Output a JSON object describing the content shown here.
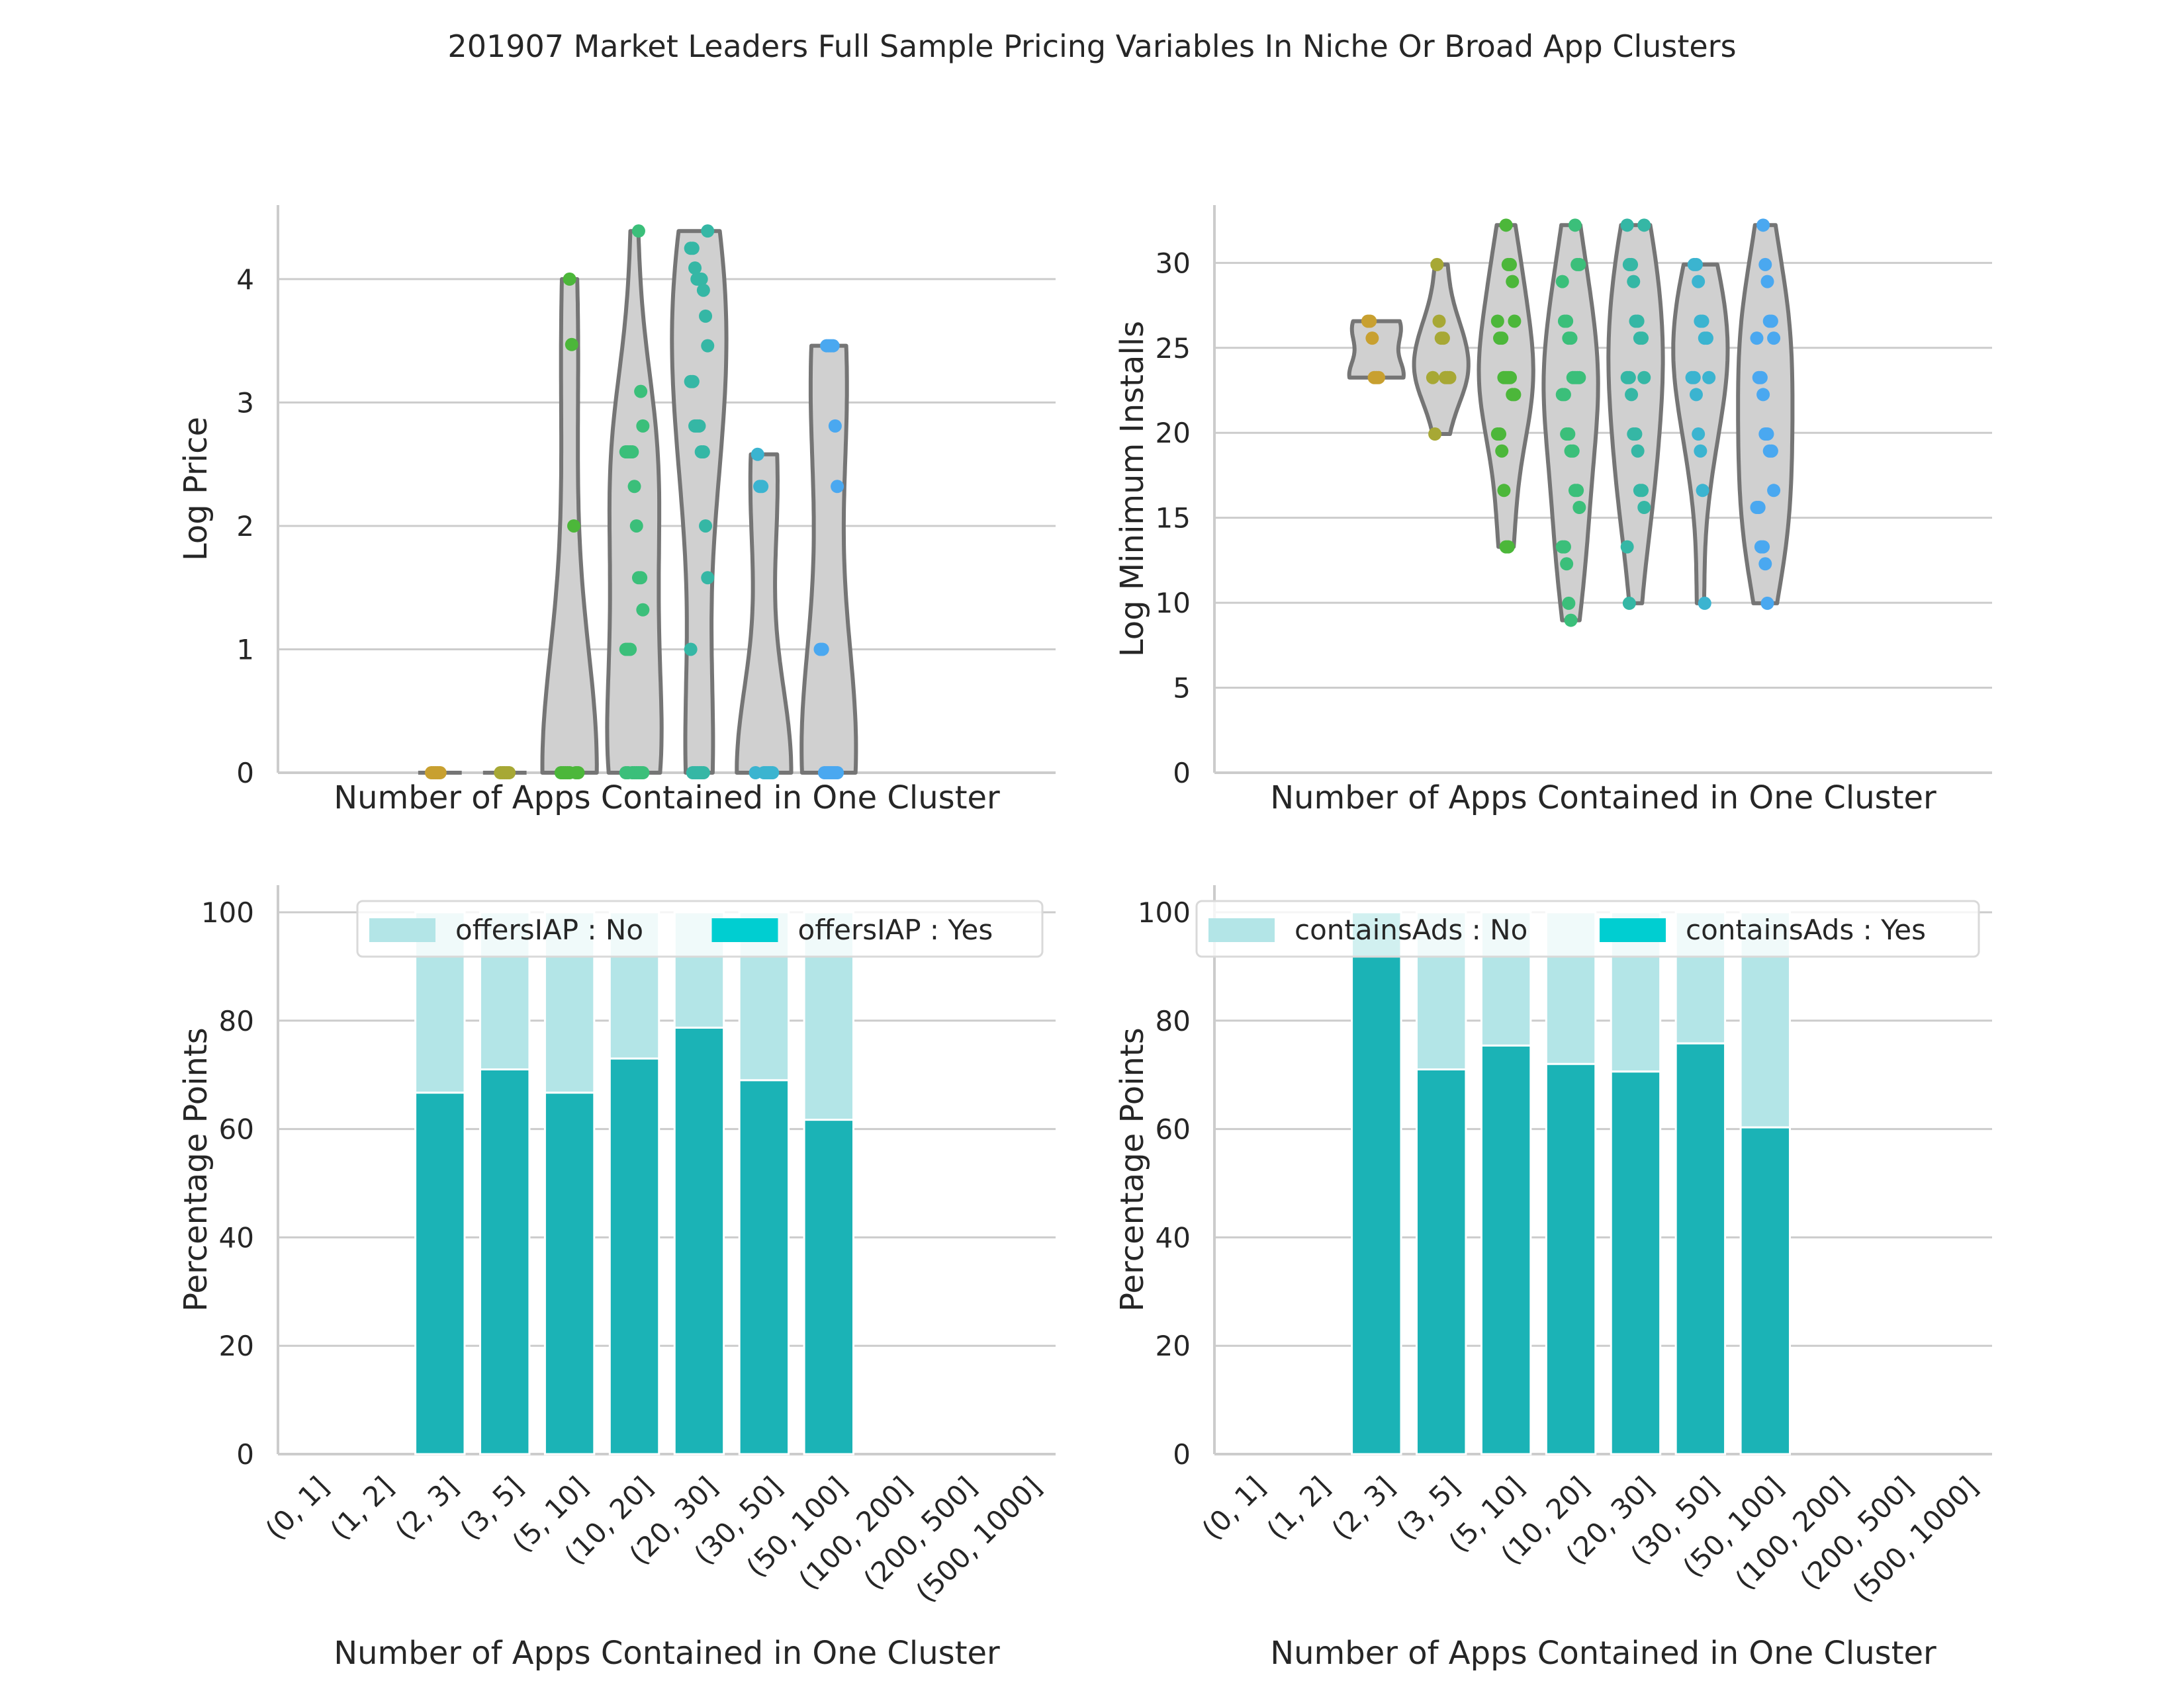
{
  "figure": {
    "title": "201907 Market Leaders Full Sample Pricing Variables In Niche Or Broad App Clusters"
  },
  "chart_data": [
    {
      "type": "violin",
      "id": "price",
      "xlabel": "Number of Apps Contained in One Cluster",
      "ylabel": "Log Price",
      "ylim": [
        0,
        4.6
      ],
      "yticks": [
        0,
        1,
        2,
        3,
        4
      ],
      "grid": true,
      "categories": [
        "(0, 1]",
        "(1, 2]",
        "(2, 3]",
        "(3, 5]",
        "(5, 10]",
        "(10, 20]",
        "(20, 30]",
        "(30, 50]",
        "(50, 100]",
        "(100, 200]",
        "(200, 500]",
        "(500, 1000]"
      ],
      "groups": [
        {
          "category": "(2, 3]",
          "color": "#c8a030",
          "range": [
            0,
            0
          ],
          "points": [
            0,
            0,
            0,
            0,
            0
          ]
        },
        {
          "category": "(3, 5]",
          "color": "#a7a835",
          "range": [
            0,
            0
          ],
          "points": [
            0,
            0,
            0,
            0,
            0
          ]
        },
        {
          "category": "(5, 10]",
          "color": "#4cb73a",
          "range": [
            0,
            4.0
          ],
          "points": [
            4.0,
            3.47,
            2.0,
            0,
            0,
            0,
            0,
            0,
            0,
            0
          ]
        },
        {
          "category": "(10, 20]",
          "color": "#3bbf7a",
          "range": [
            0,
            4.39
          ],
          "points": [
            4.39,
            3.09,
            2.81,
            2.6,
            2.6,
            2.6,
            2.6,
            2.32,
            2.0,
            1.58,
            1.58,
            1.32,
            1.0,
            1.0,
            1.0,
            0,
            0,
            0,
            0,
            0,
            0,
            0,
            0
          ]
        },
        {
          "category": "(20, 30]",
          "color": "#35b7a5",
          "range": [
            0,
            4.39
          ],
          "points": [
            4.39,
            4.25,
            4.25,
            4.09,
            4.0,
            4.0,
            4.0,
            3.91,
            3.7,
            3.46,
            3.17,
            3.17,
            2.81,
            2.81,
            2.81,
            2.6,
            2.6,
            2.0,
            1.58,
            1.0,
            0,
            0,
            0,
            0,
            0,
            0
          ]
        },
        {
          "category": "(30, 50]",
          "color": "#3bb4d0",
          "range": [
            0,
            2.58
          ],
          "points": [
            2.58,
            2.32,
            2.32,
            0,
            0,
            0,
            0,
            0,
            0
          ]
        },
        {
          "category": "(50, 100]",
          "color": "#4aa8f0",
          "range": [
            0,
            3.46
          ],
          "points": [
            3.46,
            3.46,
            3.46,
            3.46,
            2.81,
            2.32,
            1.0,
            1.0,
            0,
            0,
            0,
            0,
            0,
            0,
            0
          ]
        }
      ]
    },
    {
      "type": "violin",
      "id": "installs",
      "xlabel": "Number of Apps Contained in One Cluster",
      "ylabel": "Log Minimum Installs",
      "ylim": [
        0,
        33.4
      ],
      "yticks": [
        0,
        5,
        10,
        15,
        20,
        25,
        30
      ],
      "grid": true,
      "categories": [
        "(0, 1]",
        "(1, 2]",
        "(2, 3]",
        "(3, 5]",
        "(5, 10]",
        "(10, 20]",
        "(20, 30]",
        "(30, 50]",
        "(50, 100]",
        "(100, 200]",
        "(200, 500]",
        "(500, 1000]"
      ],
      "groups": [
        {
          "category": "(2, 3]",
          "color": "#c8a030",
          "range": [
            23.25,
            26.57
          ],
          "points": [
            26.57,
            26.57,
            25.57,
            23.25,
            23.25,
            23.25
          ]
        },
        {
          "category": "(3, 5]",
          "color": "#a7a835",
          "range": [
            19.93,
            29.9
          ],
          "points": [
            29.9,
            26.57,
            25.57,
            25.57,
            23.25,
            23.25,
            23.25,
            23.25,
            19.93
          ]
        },
        {
          "category": "(5, 10]",
          "color": "#4cb73a",
          "range": [
            13.29,
            32.22
          ],
          "points": [
            32.22,
            29.9,
            29.9,
            28.9,
            26.57,
            26.57,
            25.57,
            25.57,
            23.25,
            23.25,
            23.25,
            23.25,
            22.25,
            22.25,
            19.93,
            19.93,
            18.93,
            16.61,
            13.29,
            13.29
          ]
        },
        {
          "category": "(10, 20]",
          "color": "#3bbf7a",
          "range": [
            8.97,
            32.22
          ],
          "points": [
            32.22,
            29.9,
            29.9,
            28.9,
            26.57,
            26.57,
            25.57,
            25.57,
            23.25,
            23.25,
            23.25,
            23.25,
            22.25,
            22.25,
            19.93,
            19.93,
            18.93,
            18.93,
            16.61,
            16.61,
            15.61,
            13.29,
            13.29,
            12.29,
            9.97,
            8.97
          ]
        },
        {
          "category": "(20, 30]",
          "color": "#35b7a5",
          "range": [
            9.97,
            32.22
          ],
          "points": [
            32.22,
            32.22,
            29.9,
            29.9,
            28.9,
            26.57,
            26.57,
            25.57,
            25.57,
            23.25,
            23.25,
            23.25,
            22.25,
            19.93,
            19.93,
            18.93,
            16.61,
            16.61,
            15.61,
            13.29,
            9.97
          ]
        },
        {
          "category": "(30, 50]",
          "color": "#3bb4d0",
          "range": [
            9.97,
            29.9
          ],
          "points": [
            29.9,
            29.9,
            28.9,
            26.57,
            26.57,
            25.57,
            25.57,
            23.25,
            23.25,
            23.25,
            22.25,
            19.93,
            18.93,
            16.61,
            9.97
          ]
        },
        {
          "category": "(50, 100]",
          "color": "#4aa8f0",
          "range": [
            9.97,
            32.22
          ],
          "points": [
            32.22,
            29.9,
            28.9,
            26.57,
            26.57,
            25.57,
            25.57,
            23.25,
            23.25,
            22.25,
            19.93,
            19.93,
            18.93,
            18.93,
            16.61,
            15.61,
            15.61,
            13.29,
            13.29,
            12.29,
            9.97
          ]
        }
      ]
    },
    {
      "type": "bar",
      "stacked": true,
      "id": "iap",
      "xlabel": "Number of Apps Contained in One Cluster",
      "ylabel": "Percentage Points",
      "ylim": [
        0,
        105
      ],
      "yticks": [
        0,
        20,
        40,
        60,
        80,
        100
      ],
      "grid": true,
      "legend_position": "top-right",
      "categories": [
        "(0, 1]",
        "(1, 2]",
        "(2, 3]",
        "(3, 5]",
        "(5, 10]",
        "(10, 20]",
        "(20, 30]",
        "(30, 50]",
        "(50, 100]",
        "(100, 200]",
        "(200, 500]",
        "(500, 1000]"
      ],
      "series": [
        {
          "name": "offersIAP : No",
          "color": "#b3e5e7",
          "values": [
            0,
            0,
            33.3,
            29,
            33.3,
            27,
            21.3,
            31,
            38.3,
            0,
            0,
            0
          ]
        },
        {
          "name": "offersIAP : Yes",
          "color": "#1bb3b6",
          "legend_color": "#00ced1",
          "values": [
            0,
            0,
            66.7,
            71,
            66.7,
            73,
            78.7,
            69,
            61.7,
            0,
            0,
            0
          ]
        }
      ]
    },
    {
      "type": "bar",
      "stacked": true,
      "id": "ads",
      "xlabel": "Number of Apps Contained in One Cluster",
      "ylabel": "Percentage Points",
      "ylim": [
        0,
        105
      ],
      "yticks": [
        0,
        20,
        40,
        60,
        80,
        100
      ],
      "grid": true,
      "legend_position": "top",
      "categories": [
        "(0, 1]",
        "(1, 2]",
        "(2, 3]",
        "(3, 5]",
        "(5, 10]",
        "(10, 20]",
        "(20, 30]",
        "(30, 50]",
        "(50, 100]",
        "(100, 200]",
        "(200, 500]",
        "(500, 1000]"
      ],
      "series": [
        {
          "name": "containsAds : No",
          "color": "#b3e5e7",
          "values": [
            0,
            0,
            0,
            29,
            24.6,
            28,
            29.4,
            24.2,
            39.7,
            0,
            0,
            0
          ]
        },
        {
          "name": "containsAds : Yes",
          "color": "#1bb3b6",
          "legend_color": "#00ced1",
          "values": [
            0,
            0,
            100,
            71,
            75.4,
            72,
            70.6,
            75.8,
            60.3,
            0,
            0,
            0
          ]
        }
      ]
    }
  ]
}
